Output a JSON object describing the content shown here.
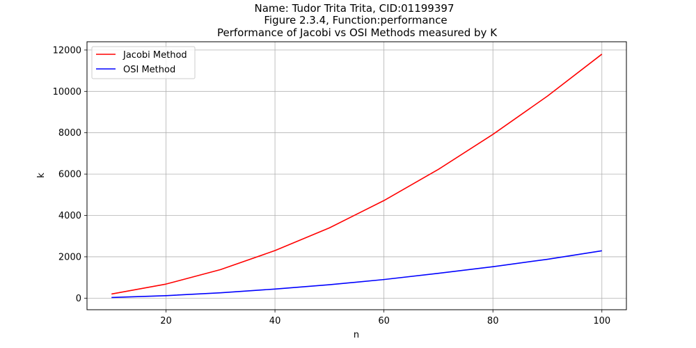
{
  "chart_data": {
    "type": "line",
    "title_lines": [
      "Name: Tudor Trita Trita, CID:01199397",
      "Figure 2.3.4, Function:performance",
      "Performance of Jacobi vs OSI Methods measured by K"
    ],
    "xlabel": "n",
    "ylabel": "k",
    "xlim": [
      5.5,
      104.5
    ],
    "ylim": [
      -560,
      12400
    ],
    "x_ticks": [
      20,
      40,
      60,
      80,
      100
    ],
    "y_ticks": [
      0,
      2000,
      4000,
      6000,
      8000,
      10000,
      12000
    ],
    "grid": true,
    "legend_position": "top-left",
    "x": [
      10,
      20,
      30,
      40,
      50,
      60,
      70,
      80,
      90,
      100
    ],
    "series": [
      {
        "name": "Jacobi Method",
        "color": "#ff0000",
        "values": [
          200,
          680,
          1380,
          2300,
          3400,
          4720,
          6230,
          7920,
          9770,
          11800
        ]
      },
      {
        "name": "OSI Method",
        "color": "#0000ff",
        "values": [
          30,
          120,
          260,
          440,
          650,
          900,
          1200,
          1520,
          1880,
          2290
        ]
      }
    ]
  }
}
